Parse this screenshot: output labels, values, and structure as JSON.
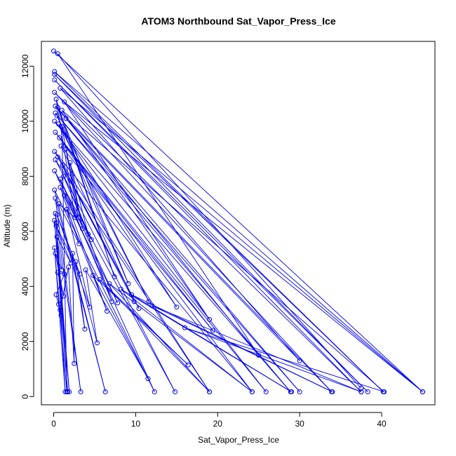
{
  "chart_data": {
    "type": "scatter",
    "title": "ATOM3 Northbound Sat_Vapor_Press_Ice",
    "xlabel": "Sat_Vapor_Press_Ice",
    "ylabel": "Altitude (m)",
    "xlim": [
      -1.5,
      46.5
    ],
    "ylim": [
      -300,
      12900
    ],
    "xticks": [
      0,
      10,
      20,
      30,
      40
    ],
    "yticks": [
      0,
      2000,
      4000,
      6000,
      8000,
      10000,
      12000
    ],
    "grid": false,
    "colors": {
      "series": "#0000ee",
      "axis": "#000000"
    },
    "series": [
      {
        "points": [
          [
            0.0,
            12550
          ],
          [
            45.0,
            170
          ],
          [
            0.1,
            11800
          ],
          [
            40.2,
            170
          ],
          [
            0.1,
            11700
          ],
          [
            38.3,
            170
          ],
          [
            0.1,
            11500
          ],
          [
            37.5,
            170
          ],
          [
            0.1,
            11050
          ],
          [
            33.9,
            170
          ],
          [
            0.2,
            10550
          ],
          [
            30.0,
            170
          ],
          [
            0.2,
            10300
          ],
          [
            28.9,
            170
          ],
          [
            0.1,
            10000
          ],
          [
            25.9,
            170
          ],
          [
            0.2,
            9600
          ],
          [
            24.2,
            170
          ],
          [
            0.1,
            8900
          ],
          [
            19.0,
            170
          ],
          [
            0.2,
            8600
          ],
          [
            14.8,
            170
          ],
          [
            0.1,
            8200
          ],
          [
            12.3,
            170
          ],
          [
            0.1,
            7500
          ],
          [
            6.3,
            170
          ],
          [
            0.2,
            7200
          ],
          [
            3.3,
            170
          ],
          [
            0.2,
            6650
          ],
          [
            1.9,
            170
          ],
          [
            0.1,
            6400
          ],
          [
            1.7,
            170
          ],
          [
            0.3,
            6300
          ],
          [
            1.4,
            170
          ],
          [
            0.1,
            5400
          ],
          [
            1.6,
            170
          ],
          [
            1.0,
            9800
          ],
          [
            3.0,
            6500
          ],
          [
            1.5,
            9000
          ],
          [
            3.5,
            6100
          ],
          [
            2.0,
            8500
          ],
          [
            4.2,
            5900
          ],
          [
            1.2,
            8000
          ],
          [
            4.6,
            5700
          ],
          [
            0.8,
            7600
          ],
          [
            3.1,
            5550
          ],
          [
            0.6,
            7000
          ],
          [
            2.6,
            6500
          ],
          [
            0.3,
            10800
          ],
          [
            7.4,
            4350
          ],
          [
            0.5,
            10500
          ],
          [
            9.1,
            4100
          ],
          [
            0.4,
            10200
          ],
          [
            11.6,
            3450
          ],
          [
            0.6,
            9900
          ],
          [
            15.0,
            3250
          ],
          [
            0.7,
            9400
          ],
          [
            19.4,
            2400
          ],
          [
            0.9,
            9100
          ],
          [
            9.8,
            3450
          ],
          [
            0.5,
            8700
          ],
          [
            10.4,
            3200
          ],
          [
            1.1,
            8400
          ],
          [
            7.1,
            3450
          ],
          [
            0.8,
            7900
          ],
          [
            7.8,
            3400
          ],
          [
            1.3,
            7300
          ],
          [
            6.5,
            3100
          ],
          [
            1.6,
            6800
          ],
          [
            4.4,
            3250
          ],
          [
            0.4,
            6600
          ],
          [
            3.2,
            4450
          ],
          [
            0.3,
            6200
          ],
          [
            2.1,
            4850
          ],
          [
            0.4,
            5800
          ],
          [
            1.0,
            4600
          ],
          [
            0.2,
            5200
          ],
          [
            1.2,
            3650
          ],
          [
            0.5,
            4500
          ],
          [
            1.3,
            4450
          ],
          [
            0.3,
            3700
          ],
          [
            0.9,
            2950
          ],
          [
            0.6,
            3350
          ],
          [
            0.8,
            3150
          ],
          [
            1.8,
            4700
          ],
          [
            2.5,
            1200
          ],
          [
            2.3,
            5200
          ],
          [
            3.8,
            2450
          ],
          [
            2.7,
            4900
          ],
          [
            5.3,
            1950
          ],
          [
            3.9,
            4600
          ],
          [
            11.5,
            650
          ],
          [
            4.8,
            4400
          ],
          [
            16.4,
            1150
          ],
          [
            5.6,
            4250
          ],
          [
            19.0,
            170
          ],
          [
            6.8,
            4100
          ],
          [
            24.2,
            170
          ],
          [
            8.2,
            3900
          ],
          [
            29.0,
            170
          ],
          [
            9.5,
            3700
          ],
          [
            34.0,
            170
          ],
          [
            12.0,
            3300
          ],
          [
            37.5,
            170
          ],
          [
            16.0,
            2500
          ],
          [
            40.3,
            170
          ],
          [
            1.0,
            10400
          ],
          [
            19.0,
            2800
          ],
          [
            1.3,
            10700
          ],
          [
            45.0,
            170
          ],
          [
            0.8,
            11200
          ],
          [
            30.0,
            1300
          ],
          [
            1.5,
            10100
          ],
          [
            25.0,
            1500
          ],
          [
            0.5,
            12450
          ],
          [
            37.5,
            300
          ]
        ]
      }
    ]
  }
}
